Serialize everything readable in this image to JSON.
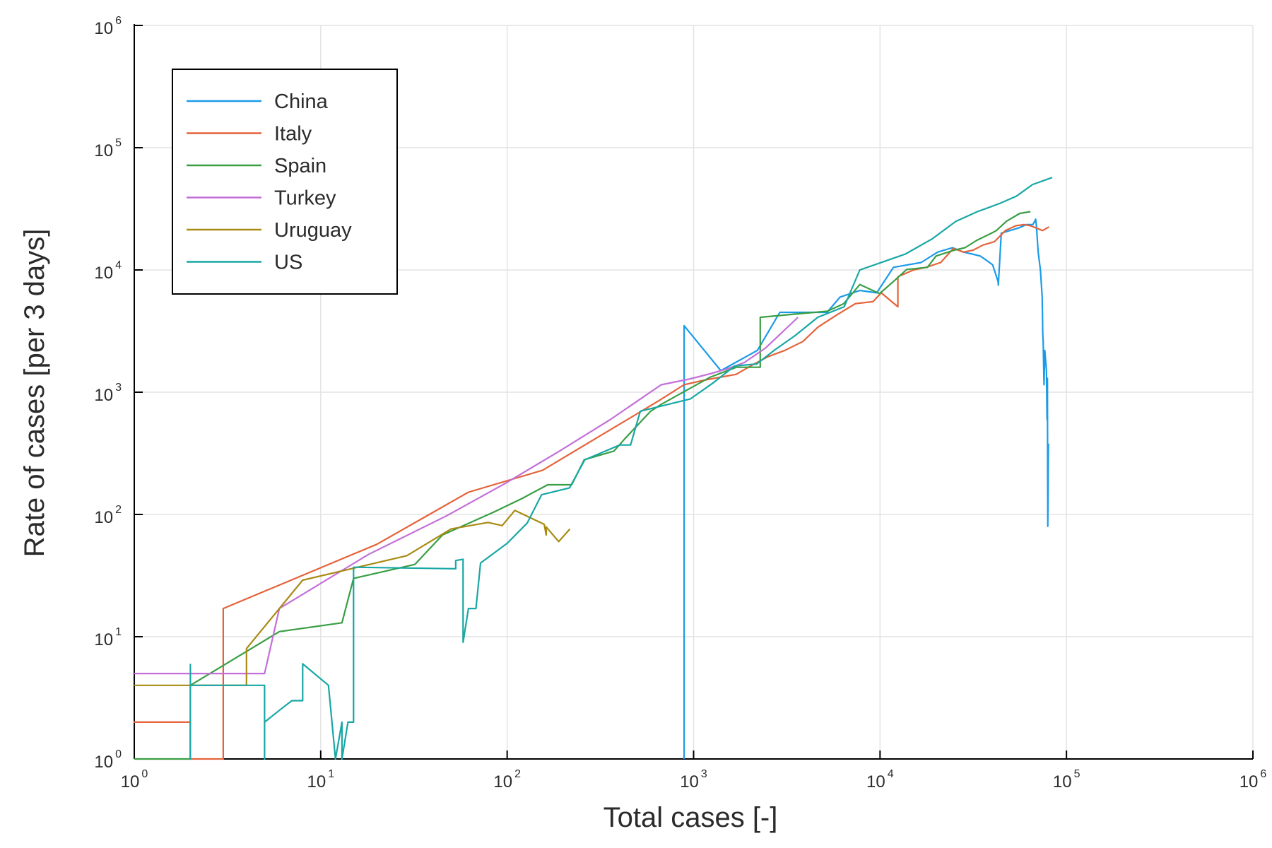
{
  "chart_data": {
    "type": "line",
    "xlabel": "Total cases [-]",
    "ylabel": "Rate of cases [per 3 days]",
    "xscale": "log",
    "yscale": "log",
    "xlim": [
      1,
      1000000
    ],
    "ylim": [
      1,
      1000000
    ],
    "grid": true,
    "legend_position": "top-left",
    "x_ticks": [
      {
        "value": 1,
        "base": "10",
        "exp": "0"
      },
      {
        "value": 10,
        "base": "10",
        "exp": "1"
      },
      {
        "value": 100,
        "base": "10",
        "exp": "2"
      },
      {
        "value": 1000,
        "base": "10",
        "exp": "3"
      },
      {
        "value": 10000,
        "base": "10",
        "exp": "4"
      },
      {
        "value": 100000,
        "base": "10",
        "exp": "5"
      },
      {
        "value": 1000000,
        "base": "10",
        "exp": "6"
      }
    ],
    "y_ticks": [
      {
        "value": 1,
        "base": "10",
        "exp": "0"
      },
      {
        "value": 10,
        "base": "10",
        "exp": "1"
      },
      {
        "value": 100,
        "base": "10",
        "exp": "2"
      },
      {
        "value": 1000,
        "base": "10",
        "exp": "3"
      },
      {
        "value": 10000,
        "base": "10",
        "exp": "4"
      },
      {
        "value": 100000,
        "base": "10",
        "exp": "5"
      },
      {
        "value": 1000000,
        "base": "10",
        "exp": "6"
      }
    ],
    "series": [
      {
        "name": "China",
        "color": "#1a9be8",
        "points": [
          [
            890,
            1
          ],
          [
            890,
            3500
          ],
          [
            1400,
            1500
          ],
          [
            2200,
            2200
          ],
          [
            2900,
            4500
          ],
          [
            5200,
            4500
          ],
          [
            6100,
            6000
          ],
          [
            7800,
            6800
          ],
          [
            9600,
            6500
          ],
          [
            11800,
            10500
          ],
          [
            16600,
            11500
          ],
          [
            20400,
            14000
          ],
          [
            24500,
            15200
          ],
          [
            28000,
            14000
          ],
          [
            31200,
            13500
          ],
          [
            34500,
            13000
          ],
          [
            37200,
            12000
          ],
          [
            40200,
            11000
          ],
          [
            43000,
            8000
          ],
          [
            43100,
            7500
          ],
          [
            44700,
            20000
          ],
          [
            55000,
            22000
          ],
          [
            61000,
            23500
          ],
          [
            66000,
            23500
          ],
          [
            67500,
            25000
          ],
          [
            68400,
            26000
          ],
          [
            69000,
            23000
          ],
          [
            70500,
            14000
          ],
          [
            72500,
            10000
          ],
          [
            74100,
            6000
          ],
          [
            74600,
            3000
          ],
          [
            75000,
            2600
          ],
          [
            75500,
            1500
          ],
          [
            75800,
            1150
          ],
          [
            76500,
            2200
          ],
          [
            77300,
            1800
          ],
          [
            78100,
            1500
          ],
          [
            78700,
            600
          ],
          [
            79000,
            1300
          ],
          [
            79400,
            80
          ],
          [
            80000,
            380
          ]
        ]
      },
      {
        "name": "Italy",
        "color": "#e4633a",
        "points": [
          [
            2,
            2
          ],
          [
            1,
            2
          ],
          [
            2,
            2
          ],
          [
            2,
            1
          ],
          [
            3,
            1
          ],
          [
            3,
            17
          ],
          [
            20,
            57
          ],
          [
            62,
            152
          ],
          [
            155,
            230
          ],
          [
            650,
            850
          ],
          [
            888,
            1150
          ],
          [
            1128,
            1250
          ],
          [
            1694,
            1400
          ],
          [
            2036,
            1650
          ],
          [
            2502,
            1950
          ],
          [
            3089,
            2200
          ],
          [
            3858,
            2600
          ],
          [
            4636,
            3400
          ],
          [
            5883,
            4300
          ],
          [
            7375,
            5300
          ],
          [
            9172,
            5500
          ],
          [
            10149,
            6500
          ],
          [
            12462,
            5000
          ],
          [
            12462,
            8800
          ],
          [
            15113,
            10000
          ],
          [
            17660,
            10500
          ],
          [
            21157,
            11500
          ],
          [
            24747,
            15000
          ],
          [
            27980,
            14000
          ],
          [
            31506,
            14500
          ],
          [
            35713,
            16000
          ],
          [
            41035,
            17000
          ],
          [
            47021,
            21000
          ],
          [
            53578,
            23000
          ],
          [
            59138,
            23500
          ],
          [
            63927,
            23000
          ],
          [
            69176,
            22000
          ],
          [
            74386,
            21000
          ],
          [
            80589,
            22500
          ]
        ]
      },
      {
        "name": "Spain",
        "color": "#3a9e44",
        "points": [
          [
            1,
            1
          ],
          [
            2,
            1
          ],
          [
            2,
            4
          ],
          [
            6,
            11
          ],
          [
            13,
            13
          ],
          [
            15,
            30
          ],
          [
            32,
            39
          ],
          [
            45,
            68
          ],
          [
            84,
            104
          ],
          [
            120,
            135
          ],
          [
            165,
            175
          ],
          [
            222,
            175
          ],
          [
            259,
            280
          ],
          [
            374,
            330
          ],
          [
            430,
            420
          ],
          [
            589,
            700
          ],
          [
            674,
            800
          ],
          [
            1231,
            1330
          ],
          [
            1695,
            1600
          ],
          [
            2277,
            1600
          ],
          [
            2277,
            4100
          ],
          [
            5232,
            4600
          ],
          [
            6391,
            5300
          ],
          [
            7798,
            7600
          ],
          [
            9942,
            6400
          ],
          [
            11748,
            8000
          ],
          [
            13910,
            10100
          ],
          [
            17963,
            10500
          ],
          [
            19980,
            13000
          ],
          [
            24926,
            14500
          ],
          [
            28572,
            15200
          ],
          [
            33089,
            17500
          ],
          [
            39673,
            20000
          ],
          [
            42058,
            21000
          ],
          [
            47610,
            25000
          ],
          [
            56188,
            29000
          ],
          [
            64059,
            30000
          ]
        ]
      },
      {
        "name": "Turkey",
        "color": "#c36fd9",
        "points": [
          [
            1,
            5
          ],
          [
            5,
            5
          ],
          [
            6,
            17
          ],
          [
            18,
            47
          ],
          [
            47,
            97
          ],
          [
            98,
            180
          ],
          [
            191,
            330
          ],
          [
            359,
            600
          ],
          [
            670,
            1150
          ],
          [
            947,
            1280
          ],
          [
            1236,
            1420
          ],
          [
            1529,
            1560
          ],
          [
            1872,
            1750
          ],
          [
            2433,
            2300
          ],
          [
            3629,
            4100
          ]
        ]
      },
      {
        "name": "Uruguay",
        "color": "#a88b14",
        "points": [
          [
            1,
            4
          ],
          [
            4,
            4
          ],
          [
            4,
            8
          ],
          [
            8,
            29
          ],
          [
            29,
            46
          ],
          [
            50,
            76
          ],
          [
            79,
            86
          ],
          [
            94,
            81
          ],
          [
            110,
            108
          ],
          [
            158,
            83
          ],
          [
            162,
            68
          ],
          [
            162,
            79
          ],
          [
            189,
            60
          ],
          [
            217,
            76
          ]
        ]
      },
      {
        "name": "US",
        "color": "#18a7a5",
        "points": [
          [
            2,
            6
          ],
          [
            2,
            1
          ],
          [
            2,
            4
          ],
          [
            5,
            4
          ],
          [
            5,
            1
          ],
          [
            5,
            2
          ],
          [
            6,
            2.5
          ],
          [
            7,
            3
          ],
          [
            8,
            3
          ],
          [
            8,
            6
          ],
          [
            11,
            4
          ],
          [
            12,
            1
          ],
          [
            13,
            2
          ],
          [
            13,
            1
          ],
          [
            14,
            2
          ],
          [
            15,
            2
          ],
          [
            15,
            37
          ],
          [
            53,
            36
          ],
          [
            53,
            42
          ],
          [
            58,
            43
          ],
          [
            58,
            9
          ],
          [
            62,
            17
          ],
          [
            68,
            17
          ],
          [
            72,
            40
          ],
          [
            100,
            58
          ],
          [
            128,
            85
          ],
          [
            153,
            145
          ],
          [
            216,
            165
          ],
          [
            261,
            280
          ],
          [
            402,
            370
          ],
          [
            459,
            370
          ],
          [
            518,
            700
          ],
          [
            583,
            730
          ],
          [
            959,
            880
          ],
          [
            1281,
            1200
          ],
          [
            1663,
            1640
          ],
          [
            2179,
            1700
          ],
          [
            2726,
            2220
          ],
          [
            3499,
            2900
          ],
          [
            4632,
            4100
          ],
          [
            6421,
            5000
          ],
          [
            7786,
            10000
          ],
          [
            13680,
            13500
          ],
          [
            19101,
            18000
          ],
          [
            25493,
            25000
          ],
          [
            33276,
            30000
          ],
          [
            43847,
            35000
          ],
          [
            53740,
            40000
          ],
          [
            65778,
            50000
          ],
          [
            83836,
            57000
          ]
        ]
      }
    ]
  }
}
